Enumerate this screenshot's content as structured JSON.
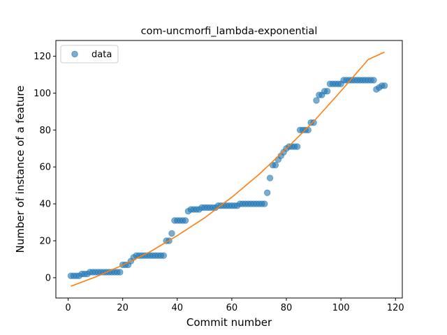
{
  "chart_data": {
    "type": "scatter",
    "title": "com-uncmorfi_lambda-exponential",
    "xlabel": "Commit number",
    "ylabel": "Number of instance of a feature",
    "xlim": [
      -4.5,
      122.5
    ],
    "ylim": [
      -11,
      128.5
    ],
    "xticks": [
      0,
      20,
      40,
      60,
      80,
      100,
      120
    ],
    "yticks": [
      0,
      20,
      40,
      60,
      80,
      100,
      120
    ],
    "grid": false,
    "legend_position": "top-left",
    "series": [
      {
        "name": "data",
        "kind": "scatter",
        "color": "#1f77b4",
        "x": [
          1,
          2,
          3,
          4,
          5,
          6,
          7,
          8,
          9,
          10,
          11,
          12,
          13,
          14,
          15,
          16,
          17,
          18,
          19,
          20,
          21,
          22,
          23,
          24,
          25,
          26,
          27,
          28,
          29,
          30,
          31,
          32,
          33,
          34,
          35,
          36,
          37,
          38,
          39,
          40,
          41,
          42,
          43,
          44,
          45,
          46,
          47,
          48,
          49,
          50,
          51,
          52,
          53,
          54,
          55,
          56,
          57,
          58,
          59,
          60,
          61,
          62,
          63,
          64,
          65,
          66,
          67,
          68,
          69,
          70,
          71,
          72,
          73,
          74,
          75,
          76,
          77,
          78,
          79,
          80,
          81,
          82,
          83,
          84,
          85,
          86,
          87,
          88,
          89,
          90,
          91,
          92,
          93,
          94,
          95,
          96,
          97,
          98,
          99,
          100,
          101,
          102,
          103,
          104,
          105,
          106,
          107,
          108,
          109,
          110,
          111,
          112,
          113,
          114,
          115,
          116
        ],
        "y": [
          1,
          1,
          1,
          1,
          2,
          2,
          2,
          3,
          3,
          3,
          3,
          3,
          3,
          3,
          3,
          3,
          3,
          3,
          3,
          7,
          7,
          7,
          9,
          11,
          12,
          12,
          12,
          12,
          12,
          12,
          12,
          12,
          12,
          12,
          12,
          20,
          20,
          24,
          31,
          31,
          31,
          31,
          31,
          36,
          37,
          37,
          37,
          37,
          38,
          38,
          38,
          38,
          38,
          38,
          39,
          39,
          39,
          39,
          39,
          39,
          39,
          39,
          40,
          40,
          40,
          40,
          40,
          40,
          40,
          40,
          40,
          40,
          46,
          54,
          61,
          61,
          64,
          66,
          68,
          70,
          71,
          71,
          71,
          71,
          80,
          80,
          80,
          80,
          84,
          84,
          96,
          99,
          99,
          101,
          101,
          105,
          105,
          105,
          105,
          105,
          107,
          107,
          107,
          107,
          107,
          107,
          107,
          107,
          107,
          107,
          107,
          107,
          102,
          103,
          104,
          104
        ]
      },
      {
        "name": "",
        "kind": "line",
        "color": "#ff7f0e",
        "x": [
          1,
          10,
          20,
          30,
          40,
          50,
          60,
          70,
          80,
          90,
          100,
          110,
          116
        ],
        "y": [
          -4.6,
          0.4,
          6.8,
          14,
          22.8,
          32.4,
          43.6,
          56,
          69.9,
          84.6,
          101.1,
          118.2,
          122.2
        ]
      }
    ]
  }
}
